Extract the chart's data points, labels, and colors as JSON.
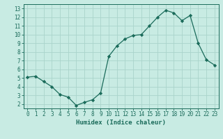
{
  "x": [
    0,
    1,
    2,
    3,
    4,
    5,
    6,
    7,
    8,
    9,
    10,
    11,
    12,
    13,
    14,
    15,
    16,
    17,
    18,
    19,
    20,
    21,
    22,
    23
  ],
  "y": [
    5.1,
    5.2,
    4.6,
    4.0,
    3.1,
    2.8,
    1.85,
    2.2,
    2.5,
    3.3,
    7.5,
    8.7,
    9.5,
    9.9,
    10.0,
    11.0,
    12.0,
    12.8,
    12.5,
    11.6,
    12.2,
    9.0,
    7.1,
    6.5
  ],
  "line_color": "#1a6b5a",
  "marker": "D",
  "marker_size": 2.2,
  "bg_color": "#c8ebe3",
  "grid_color": "#aad4cb",
  "xlabel": "Humidex (Indice chaleur)",
  "xlim": [
    -0.5,
    23.5
  ],
  "ylim": [
    1.5,
    13.5
  ],
  "yticks": [
    2,
    3,
    4,
    5,
    6,
    7,
    8,
    9,
    10,
    11,
    12,
    13
  ],
  "xticks": [
    0,
    1,
    2,
    3,
    4,
    5,
    6,
    7,
    8,
    9,
    10,
    11,
    12,
    13,
    14,
    15,
    16,
    17,
    18,
    19,
    20,
    21,
    22,
    23
  ],
  "tick_color": "#1a6b5a",
  "label_fontsize": 6.5,
  "tick_fontsize": 5.5
}
